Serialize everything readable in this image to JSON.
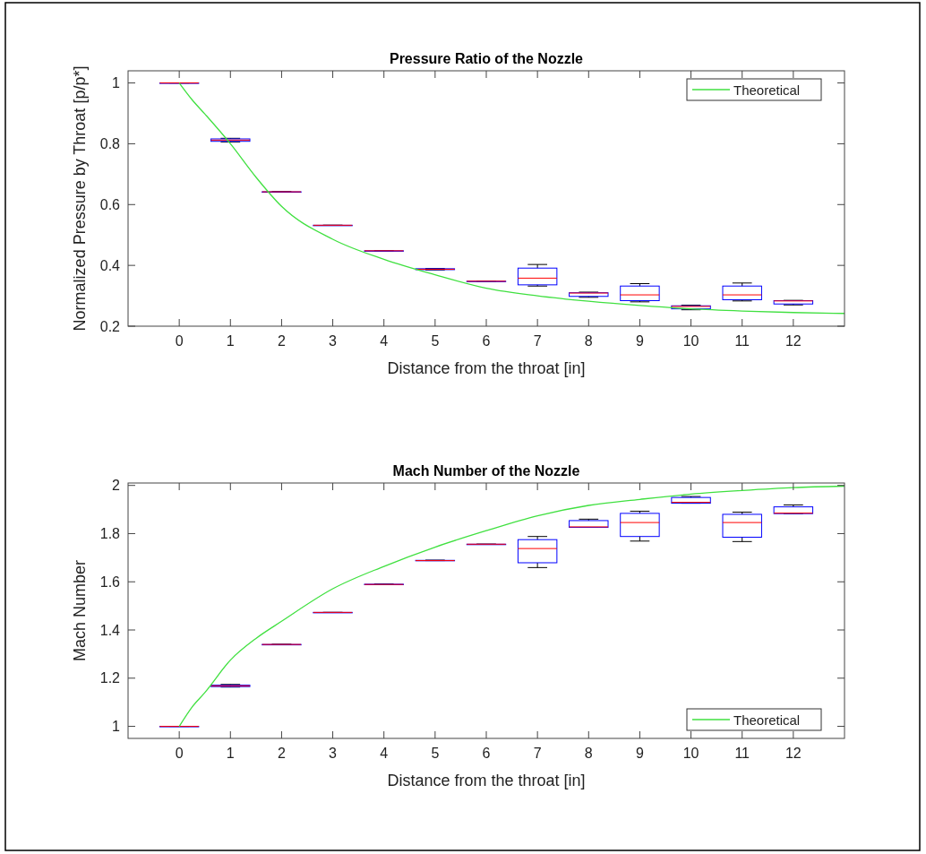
{
  "chart_data": [
    {
      "type": "box",
      "title": "Pressure Ratio of the Nozzle",
      "xlabel": "Distance from the throat [in]",
      "ylabel": "Normalized Pressure by Throat [p/p*]",
      "x": [
        0,
        1,
        2,
        3,
        4,
        5,
        6,
        7,
        8,
        9,
        10,
        11,
        12
      ],
      "xlim": [
        -1,
        13
      ],
      "xticks": [
        0,
        1,
        2,
        3,
        4,
        5,
        6,
        7,
        8,
        9,
        10,
        11,
        12
      ],
      "ylim": [
        0.2,
        1.04
      ],
      "yticks": [
        0.2,
        0.4,
        0.6,
        0.8,
        1
      ],
      "legend": "top right",
      "grid": false,
      "series": [
        {
          "type": "box",
          "color": "#0000ff",
          "boxes": [
            {
              "low": 1,
              "q1": 1,
              "median": 1,
              "q3": 1,
              "high": 1
            },
            {
              "low": 0.806,
              "q1": 0.808,
              "median": 0.812,
              "q3": 0.816,
              "high": 0.818
            },
            {
              "low": 0.642,
              "q1": 0.642,
              "median": 0.642,
              "q3": 0.642,
              "high": 0.642
            },
            {
              "low": 0.532,
              "q1": 0.532,
              "median": 0.532,
              "q3": 0.532,
              "high": 0.532
            },
            {
              "low": 0.448,
              "q1": 0.448,
              "median": 0.448,
              "q3": 0.448,
              "high": 0.448
            },
            {
              "low": 0.385,
              "q1": 0.386,
              "median": 0.387,
              "q3": 0.389,
              "high": 0.39
            },
            {
              "low": 0.348,
              "q1": 0.348,
              "median": 0.348,
              "q3": 0.348,
              "high": 0.348
            },
            {
              "low": 0.332,
              "q1": 0.336,
              "median": 0.358,
              "q3": 0.391,
              "high": 0.403
            },
            {
              "low": 0.295,
              "q1": 0.298,
              "median": 0.309,
              "q3": 0.31,
              "high": 0.312
            },
            {
              "low": 0.28,
              "q1": 0.284,
              "median": 0.303,
              "q3": 0.332,
              "high": 0.34
            },
            {
              "low": 0.254,
              "q1": 0.257,
              "median": 0.265,
              "q3": 0.267,
              "high": 0.269
            },
            {
              "low": 0.283,
              "q1": 0.287,
              "median": 0.303,
              "q3": 0.332,
              "high": 0.342
            },
            {
              "low": 0.27,
              "q1": 0.273,
              "median": 0.283,
              "q3": 0.284,
              "high": 0.285
            }
          ]
        },
        {
          "type": "line",
          "name": "Theoretical",
          "color": "#40e040",
          "x": [
            0,
            0.25,
            0.5,
            1,
            1.5,
            2,
            3,
            4,
            5,
            6,
            7,
            8,
            9,
            10,
            11,
            12,
            13
          ],
          "values": [
            1,
            0.945,
            0.898,
            0.8,
            0.69,
            0.594,
            0.486,
            0.42,
            0.369,
            0.325,
            0.3,
            0.282,
            0.268,
            0.257,
            0.25,
            0.245,
            0.242
          ]
        }
      ]
    },
    {
      "type": "box",
      "title": "Mach Number of the Nozzle",
      "xlabel": "Distance from the throat [in]",
      "ylabel": "Mach Number",
      "x": [
        0,
        1,
        2,
        3,
        4,
        5,
        6,
        7,
        8,
        9,
        10,
        11,
        12
      ],
      "xlim": [
        -1,
        13
      ],
      "xticks": [
        0,
        1,
        2,
        3,
        4,
        5,
        6,
        7,
        8,
        9,
        10,
        11,
        12
      ],
      "ylim": [
        0.95,
        2.01
      ],
      "yticks": [
        1,
        1.2,
        1.4,
        1.6,
        1.8,
        2
      ],
      "legend": "bottom right",
      "grid": false,
      "series": [
        {
          "type": "box",
          "color": "#0000ff",
          "boxes": [
            {
              "low": 1,
              "q1": 1,
              "median": 1,
              "q3": 1,
              "high": 1
            },
            {
              "low": 1.163,
              "q1": 1.165,
              "median": 1.168,
              "q3": 1.171,
              "high": 1.174
            },
            {
              "low": 1.34,
              "q1": 1.34,
              "median": 1.34,
              "q3": 1.34,
              "high": 1.34
            },
            {
              "low": 1.473,
              "q1": 1.473,
              "median": 1.473,
              "q3": 1.473,
              "high": 1.473
            },
            {
              "low": 1.588,
              "q1": 1.588,
              "median": 1.589,
              "q3": 1.59,
              "high": 1.591
            },
            {
              "low": 1.688,
              "q1": 1.688,
              "median": 1.688,
              "q3": 1.689,
              "high": 1.69
            },
            {
              "low": 1.756,
              "q1": 1.756,
              "median": 1.756,
              "q3": 1.756,
              "high": 1.756
            },
            {
              "low": 1.659,
              "q1": 1.679,
              "median": 1.738,
              "q3": 1.775,
              "high": 1.788
            },
            {
              "low": 1.826,
              "q1": 1.826,
              "median": 1.828,
              "q3": 1.854,
              "high": 1.86
            },
            {
              "low": 1.769,
              "q1": 1.788,
              "median": 1.846,
              "q3": 1.884,
              "high": 1.893
            },
            {
              "low": 1.926,
              "q1": 1.926,
              "median": 1.93,
              "q3": 1.95,
              "high": 1.954
            },
            {
              "low": 1.767,
              "q1": 1.785,
              "median": 1.846,
              "q3": 1.88,
              "high": 1.889
            },
            {
              "low": 1.883,
              "q1": 1.883,
              "median": 1.885,
              "q3": 1.911,
              "high": 1.919
            }
          ]
        },
        {
          "type": "line",
          "name": "Theoretical",
          "color": "#40e040",
          "x": [
            0,
            0.25,
            0.5,
            1,
            1.5,
            2,
            3,
            4,
            5,
            6,
            7,
            8,
            9,
            10,
            11,
            12,
            13
          ],
          "values": [
            1,
            1.08,
            1.14,
            1.275,
            1.365,
            1.436,
            1.571,
            1.664,
            1.744,
            1.812,
            1.874,
            1.917,
            1.942,
            1.964,
            1.979,
            1.991,
            1.997
          ]
        }
      ]
    }
  ]
}
